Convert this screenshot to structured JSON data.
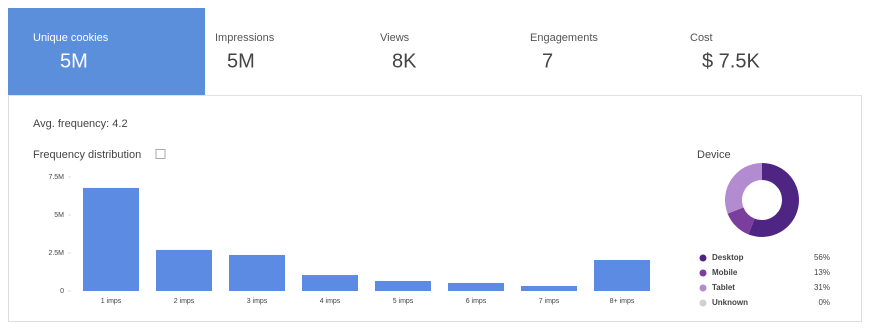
{
  "tabs": [
    {
      "label": "Unique cookies",
      "value": "5M"
    },
    {
      "label": "Impressions",
      "value": "5M"
    },
    {
      "label": "Views",
      "value": "8K"
    },
    {
      "label": "Engagements",
      "value": "7"
    },
    {
      "label": "Cost",
      "value": "$ 7.5K"
    }
  ],
  "avg_frequency": "Avg. frequency: 4.2",
  "chart_data": [
    {
      "type": "bar",
      "title": "Frequency distribution",
      "categories": [
        "1 imps",
        "2 imps",
        "3 imps",
        "4 imps",
        "5 imps",
        "6 imps",
        "7 imps",
        "8+ imps"
      ],
      "values": [
        6780000,
        2700000,
        2370000,
        1050000,
        660000,
        530000,
        330000,
        2040000
      ],
      "color": "#5b8be3",
      "ylim": [
        0,
        7500000
      ],
      "yticks": [
        0,
        {
          "value": 2500000,
          "label": "2.5M"
        },
        {
          "value": 5000000,
          "label": "5M"
        },
        {
          "value": 7500000,
          "label": "7.5M"
        }
      ],
      "grid": false
    },
    {
      "type": "pie",
      "title": "Device",
      "categories": [
        "Desktop",
        "Mobile",
        "Tablet",
        "Unknown"
      ],
      "values": [
        56,
        13,
        31,
        0
      ],
      "value_labels": [
        "56%",
        "13%",
        "31%",
        "0%"
      ],
      "colors": [
        "#4e2582",
        "#7a3e9d",
        "#b38bd0",
        "#cfcfd6"
      ]
    }
  ]
}
